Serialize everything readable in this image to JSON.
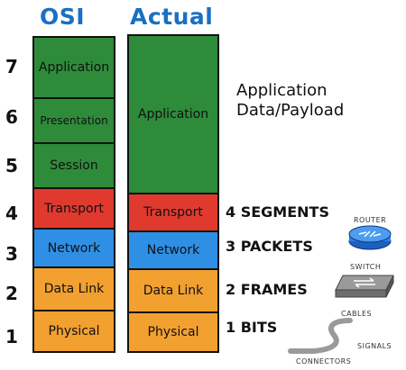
{
  "headings": {
    "osi": "OSI",
    "actual": "Actual"
  },
  "osi_layers": [
    {
      "num": "7",
      "label": "Application",
      "color": "#2e8b3a"
    },
    {
      "num": "6",
      "label": "Presentation",
      "color": "#2e8b3a"
    },
    {
      "num": "5",
      "label": "Session",
      "color": "#2e8b3a"
    },
    {
      "num": "4",
      "label": "Transport",
      "color": "#e03a2f"
    },
    {
      "num": "3",
      "label": "Network",
      "color": "#2f8fe5"
    },
    {
      "num": "2",
      "label": "Data Link",
      "color": "#f2a030"
    },
    {
      "num": "1",
      "label": "Physical",
      "color": "#f2a030"
    }
  ],
  "actual_layers": [
    {
      "label": "Application",
      "color": "#2e8b3a"
    },
    {
      "label": "Transport",
      "color": "#e03a2f"
    },
    {
      "label": "Network",
      "color": "#2f8fe5"
    },
    {
      "label": "Data Link",
      "color": "#f2a030"
    },
    {
      "label": "Physical",
      "color": "#f2a030"
    }
  ],
  "app_data": {
    "line1": "Application",
    "line2": "Data/Payload"
  },
  "units": {
    "segments": "4 SEGMENTS",
    "packets": "3 PACKETS",
    "frames": "2 FRAMES",
    "bits": "1 BITS"
  },
  "devices": {
    "router": "ROUTER",
    "switch": "SWITCH",
    "cables": "CABLES",
    "signals": "SIGNALS",
    "connectors": "CONNECTORS"
  },
  "icons": [
    "router-icon",
    "switch-icon",
    "cable-icon"
  ]
}
